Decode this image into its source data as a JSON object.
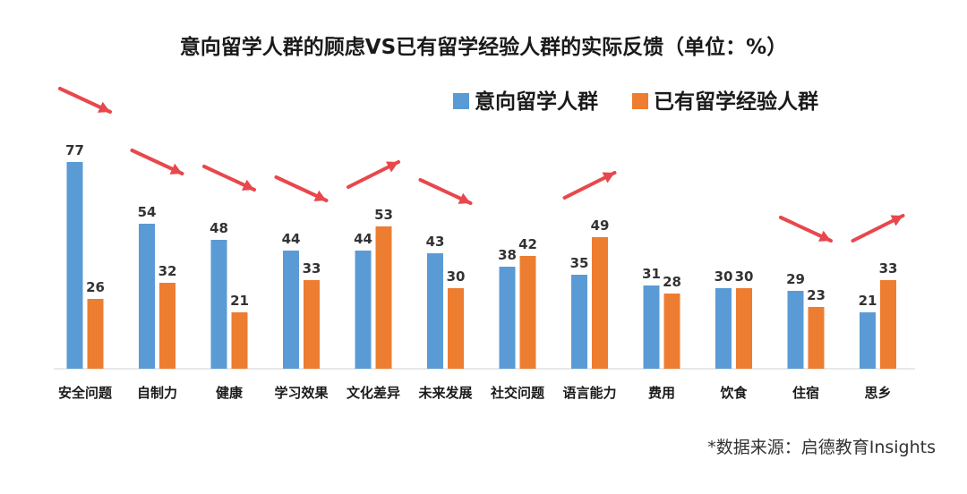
{
  "chart_data": {
    "type": "bar",
    "title": "意向留学人群的顾虑VS已有留学经验人群的实际反馈（单位：%）",
    "categories": [
      "安全问题",
      "自制力",
      "健康",
      "学习效果",
      "文化差异",
      "未来发展",
      "社交问题",
      "语言能力",
      "费用",
      "饮食",
      "住宿",
      "思乡"
    ],
    "series": [
      {
        "name": "意向留学人群",
        "color": "#5b9bd5",
        "values": [
          77,
          54,
          48,
          44,
          44,
          43,
          38,
          35,
          31,
          30,
          29,
          21
        ]
      },
      {
        "name": "已有留学经验人群",
        "color": "#ed7d31",
        "values": [
          26,
          32,
          21,
          33,
          53,
          30,
          42,
          49,
          28,
          30,
          23,
          33
        ]
      }
    ],
    "trend_arrows": [
      "down",
      "down",
      "down",
      "down",
      "up",
      "down",
      "none",
      "up",
      "none",
      "none",
      "down",
      "up"
    ],
    "arrow_color": "#e8474c",
    "ylim": [
      0,
      80
    ],
    "grid": false,
    "legend_position": "top-right",
    "footnote": "*数据来源：启德教育Insights"
  }
}
